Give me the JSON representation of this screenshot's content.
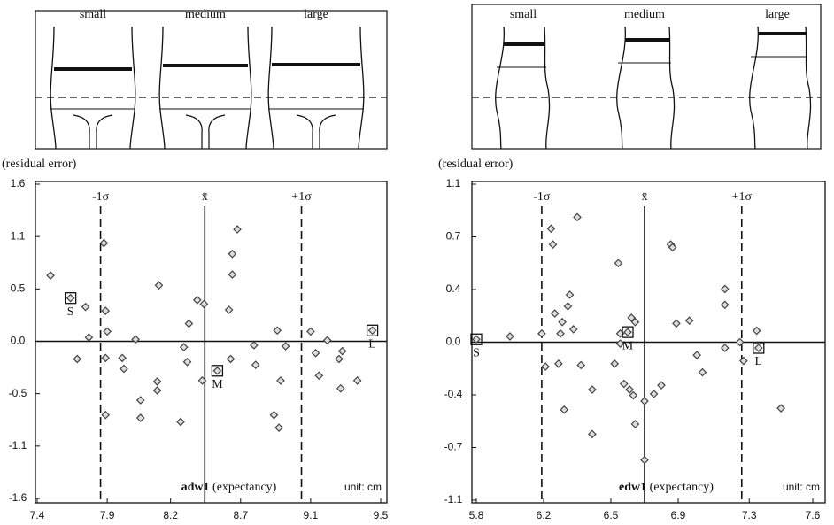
{
  "chart_data": [
    {
      "type": "scatter",
      "figure_labels": [
        "small",
        "medium",
        "large"
      ],
      "ytitle": "(residual error)",
      "xlabel": {
        "name": "adw1",
        "text": "(expectancy)"
      },
      "unit": "unit: cm",
      "xlim": [
        7.44,
        9.5
      ],
      "xticks": [
        {
          "value": 7.44,
          "label": "7.4"
        },
        {
          "value": 7.86,
          "label": "7.9"
        },
        {
          "value": 8.24,
          "label": "8.2"
        },
        {
          "value": 8.66,
          "label": "8.7"
        },
        {
          "value": 9.08,
          "label": "9.1"
        },
        9.5
      ],
      "ylim": [
        -1.6,
        1.6
      ],
      "yticks": [
        1.6,
        {
          "value": 1.0667,
          "label": "1.1"
        },
        {
          "value": 0.5333,
          "label": "0.5"
        },
        {
          "value": 0,
          "label": "0.0"
        },
        {
          "value": -0.5333,
          "label": "-0.5"
        },
        {
          "value": -1.0667,
          "label": "-1.1"
        },
        -1.6
      ],
      "reference_lines": [
        {
          "label": "-1σ",
          "value": 7.82
        },
        {
          "label": "x̄",
          "value": 8.445
        },
        {
          "label": "+1σ",
          "value": 9.025
        }
      ],
      "x": [
        7.52,
        7.68,
        7.73,
        7.75,
        7.84,
        7.85,
        7.85,
        7.86,
        7.85,
        7.95,
        7.96,
        8.03,
        8.06,
        8.06,
        8.16,
        8.16,
        8.17,
        8.3,
        8.32,
        8.34,
        8.35,
        8.4,
        8.44,
        8.43,
        8.59,
        8.6,
        8.61,
        8.61,
        8.64,
        8.74,
        8.75,
        8.88,
        8.86,
        8.89,
        8.9,
        8.93,
        9.08,
        9.11,
        9.13,
        9.18,
        9.25,
        9.26,
        9.27,
        9.36
      ],
      "y": [
        0.67,
        -0.18,
        0.35,
        0.04,
        1.0,
        0.31,
        -0.17,
        0.1,
        -0.75,
        -0.17,
        -0.28,
        0.02,
        -0.6,
        -0.78,
        -0.41,
        -0.5,
        0.57,
        -0.82,
        -0.06,
        -0.21,
        0.18,
        0.42,
        0.38,
        -0.4,
        0.32,
        -0.18,
        0.89,
        0.68,
        1.14,
        -0.04,
        -0.24,
        0.11,
        -0.75,
        -0.88,
        -0.4,
        -0.05,
        0.1,
        -0.12,
        -0.35,
        0.01,
        -0.18,
        -0.48,
        -0.1,
        -0.4
      ],
      "marked_points": [
        {
          "label": "S",
          "x": 7.64,
          "y": 0.44
        },
        {
          "label": "M",
          "x": 8.52,
          "y": -0.3
        },
        {
          "label": "L",
          "x": 9.45,
          "y": 0.11
        }
      ]
    },
    {
      "type": "scatter",
      "figure_labels": [
        "small",
        "medium",
        "large"
      ],
      "ytitle": "(residual error)",
      "xlabel": {
        "name": "edw1",
        "text": "(expectancy)"
      },
      "unit": "unit: cm",
      "xlim": [
        5.8,
        7.6
      ],
      "xticks": [
        5.8,
        {
          "value": 6.16,
          "label": "6.2"
        },
        {
          "value": 6.52,
          "label": "6.5"
        },
        {
          "value": 6.88,
          "label": "6.9"
        },
        {
          "value": 7.26,
          "label": "7.3"
        },
        7.6
      ],
      "ylim": [
        -1.1,
        1.1
      ],
      "yticks": [
        1.1,
        {
          "value": 0.7333,
          "label": "0.7"
        },
        {
          "value": 0.3667,
          "label": "0.4"
        },
        {
          "value": 0,
          "label": "0.0"
        },
        {
          "value": -0.3667,
          "label": "-0.4"
        },
        {
          "value": -0.7333,
          "label": "-0.7"
        },
        -1.1
      ],
      "reference_lines": [
        {
          "label": "-1σ",
          "value": 6.15
        },
        {
          "label": "x̄",
          "value": 6.7
        },
        {
          "label": "+1σ",
          "value": 7.22
        }
      ],
      "x": [
        5.98,
        6.15,
        6.17,
        6.2,
        6.21,
        6.22,
        6.24,
        6.25,
        6.26,
        6.27,
        6.29,
        6.3,
        6.32,
        6.34,
        6.36,
        6.42,
        6.42,
        6.56,
        6.57,
        6.54,
        6.59,
        6.63,
        6.65,
        6.62,
        6.64,
        6.65,
        6.57,
        6.7,
        6.7,
        6.75,
        6.79,
        6.84,
        6.85,
        6.87,
        6.94,
        6.98,
        7.01,
        7.13,
        7.13,
        7.13,
        7.21,
        7.23,
        7.3,
        7.43
      ],
      "y": [
        0.04,
        0.06,
        -0.17,
        0.79,
        0.68,
        0.2,
        -0.15,
        0.06,
        0.14,
        -0.47,
        0.25,
        0.33,
        0.09,
        0.87,
        -0.16,
        -0.33,
        -0.64,
        0.55,
        -0.01,
        -0.15,
        -0.29,
        0.17,
        0.14,
        -0.33,
        -0.37,
        -0.57,
        0.06,
        -0.41,
        -0.82,
        -0.36,
        -0.3,
        0.68,
        0.66,
        0.13,
        0.15,
        -0.09,
        -0.21,
        0.37,
        0.26,
        -0.04,
        0.0,
        -0.13,
        0.08,
        -0.46
      ],
      "marked_points": [
        {
          "label": "S",
          "x": 5.8,
          "y": 0.02
        },
        {
          "label": "M",
          "x": 6.61,
          "y": 0.07
        },
        {
          "label": "L",
          "x": 7.31,
          "y": -0.04
        }
      ]
    }
  ]
}
